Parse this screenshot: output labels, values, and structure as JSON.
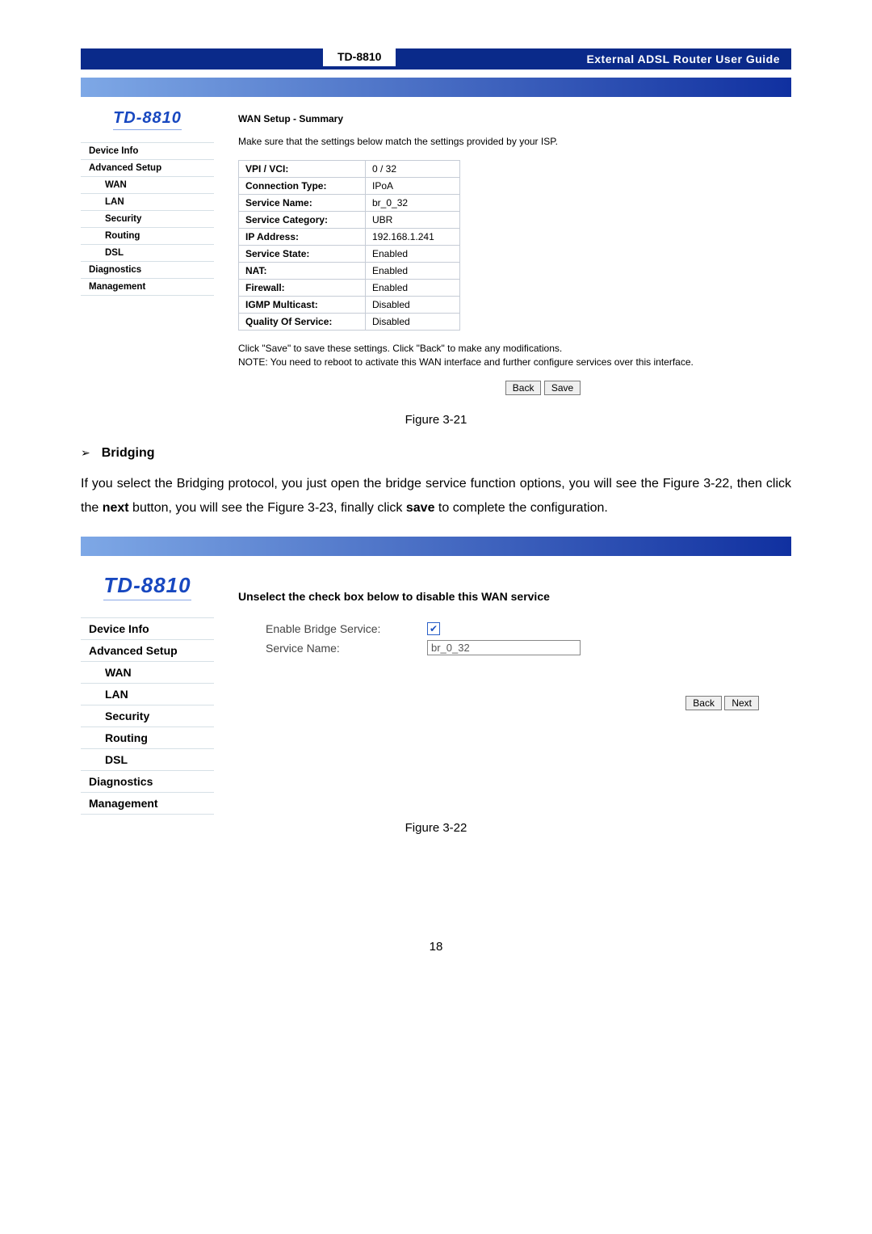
{
  "header": {
    "model": "TD-8810",
    "title": "External ADSL Router User Guide"
  },
  "panel1": {
    "logo": "TD-8810",
    "nav": [
      {
        "label": "Device Info",
        "sub": false
      },
      {
        "label": "Advanced Setup",
        "sub": false
      },
      {
        "label": "WAN",
        "sub": true
      },
      {
        "label": "LAN",
        "sub": true
      },
      {
        "label": "Security",
        "sub": true
      },
      {
        "label": "Routing",
        "sub": true
      },
      {
        "label": "DSL",
        "sub": true
      },
      {
        "label": "Diagnostics",
        "sub": false
      },
      {
        "label": "Management",
        "sub": false
      }
    ],
    "heading": "WAN Setup - Summary",
    "intro": "Make sure that the settings below match the settings provided by your ISP.",
    "rows": [
      {
        "label": "VPI / VCI:",
        "value": "0 / 32"
      },
      {
        "label": "Connection Type:",
        "value": "IPoA"
      },
      {
        "label": "Service Name:",
        "value": "br_0_32"
      },
      {
        "label": "Service Category:",
        "value": "UBR"
      },
      {
        "label": "IP Address:",
        "value": "192.168.1.241"
      },
      {
        "label": "Service State:",
        "value": "Enabled"
      },
      {
        "label": "NAT:",
        "value": "Enabled"
      },
      {
        "label": "Firewall:",
        "value": "Enabled"
      },
      {
        "label": "IGMP Multicast:",
        "value": "Disabled"
      },
      {
        "label": "Quality Of Service:",
        "value": "Disabled"
      }
    ],
    "note": "Click \"Save\" to save these settings. Click \"Back\" to make any modifications.\nNOTE: You need to reboot to activate this WAN interface and further configure services over this interface.",
    "back_btn": "Back",
    "save_btn": "Save"
  },
  "caption1": "Figure 3-21",
  "bridging": {
    "bullet": "Bridging",
    "para_pre": "If you select the Bridging protocol, you just open the bridge service function options,  you will see the  Figure 3-22, then click the ",
    "para_b1": "next",
    "para_mid": " button, you will see the Figure 3-23, finally click ",
    "para_b2": "save",
    "para_post": " to complete the configuration."
  },
  "panel2": {
    "logo": "TD-8810",
    "nav": [
      {
        "label": "Device Info",
        "sub": false
      },
      {
        "label": "Advanced Setup",
        "sub": false
      },
      {
        "label": "WAN",
        "sub": true
      },
      {
        "label": "LAN",
        "sub": true
      },
      {
        "label": "Security",
        "sub": true
      },
      {
        "label": "Routing",
        "sub": true
      },
      {
        "label": "DSL",
        "sub": true
      },
      {
        "label": "Diagnostics",
        "sub": false
      },
      {
        "label": "Management",
        "sub": false
      }
    ],
    "heading": "Unselect the check box below to disable this WAN service",
    "enable_label": "Enable Bridge Service:",
    "service_label": "Service Name:",
    "service_value": "br_0_32",
    "back_btn": "Back",
    "next_btn": "Next"
  },
  "caption2": "Figure 3-22",
  "page_number": "18"
}
